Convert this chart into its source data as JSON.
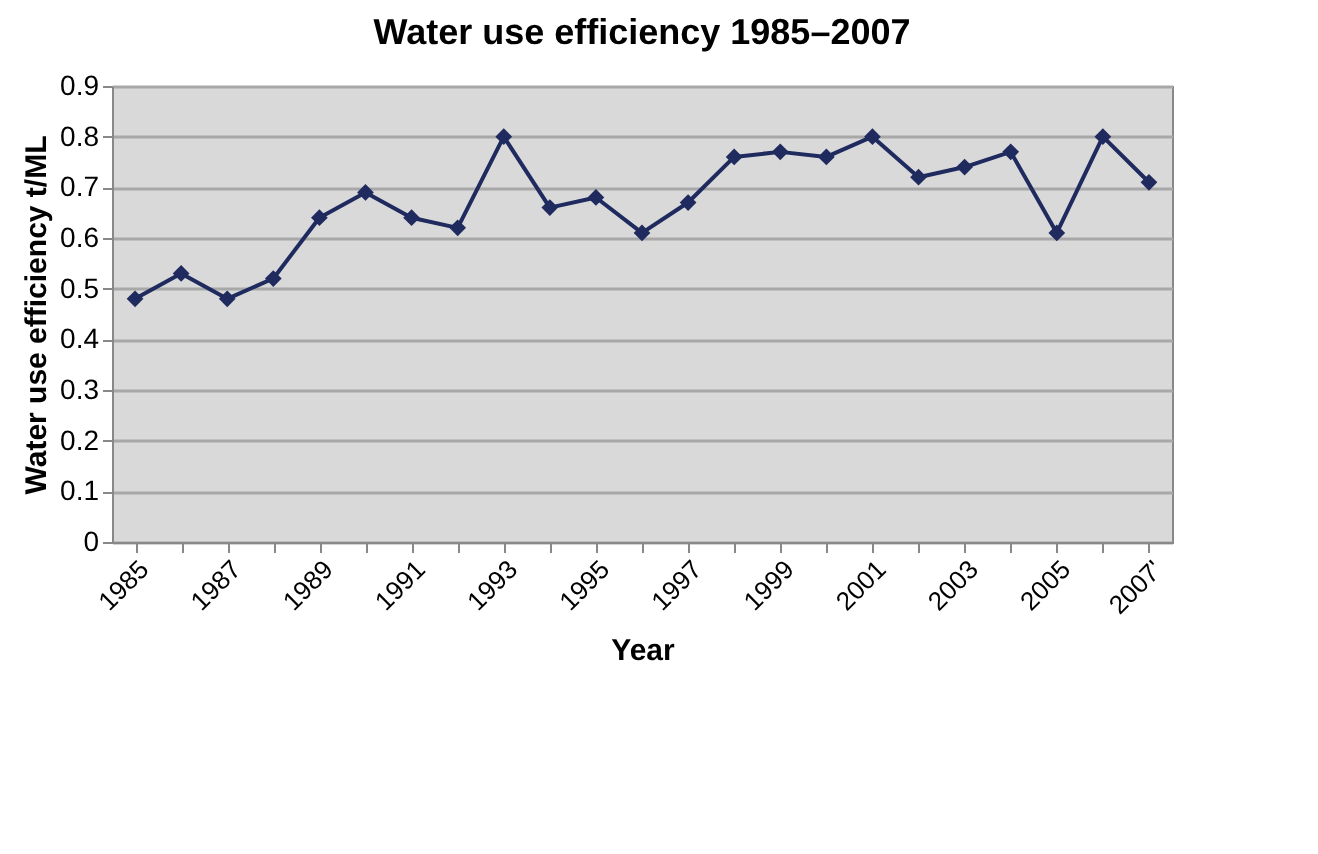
{
  "chart_data": {
    "type": "line",
    "title": "Water use efficiency 1985–2007",
    "xlabel": "Year",
    "ylabel": "Water use efficiency t/ML",
    "categories": [
      "1985",
      null,
      "1987",
      null,
      "1989",
      null,
      "1991",
      null,
      "1993",
      null,
      "1995",
      null,
      "1997",
      null,
      "1999",
      null,
      "2001",
      null,
      "2003",
      null,
      "2005",
      null,
      "2007'"
    ],
    "series": [
      {
        "color": "#1f2a5e",
        "values": [
          0.48,
          0.53,
          0.48,
          0.52,
          0.64,
          0.69,
          0.64,
          0.62,
          0.8,
          0.66,
          0.68,
          0.61,
          0.67,
          0.76,
          0.77,
          0.76,
          0.8,
          0.72,
          0.74,
          0.77,
          0.61,
          0.8,
          0.71
        ]
      }
    ],
    "ylim": [
      0,
      0.9
    ],
    "yticks": [
      {
        "value": 0,
        "label": "0"
      },
      0.1,
      0.2,
      0.3,
      0.4,
      0.5,
      0.6,
      0.7,
      0.8,
      0.9
    ],
    "grid": "y",
    "marker": "diamond",
    "line_style": "solid"
  }
}
